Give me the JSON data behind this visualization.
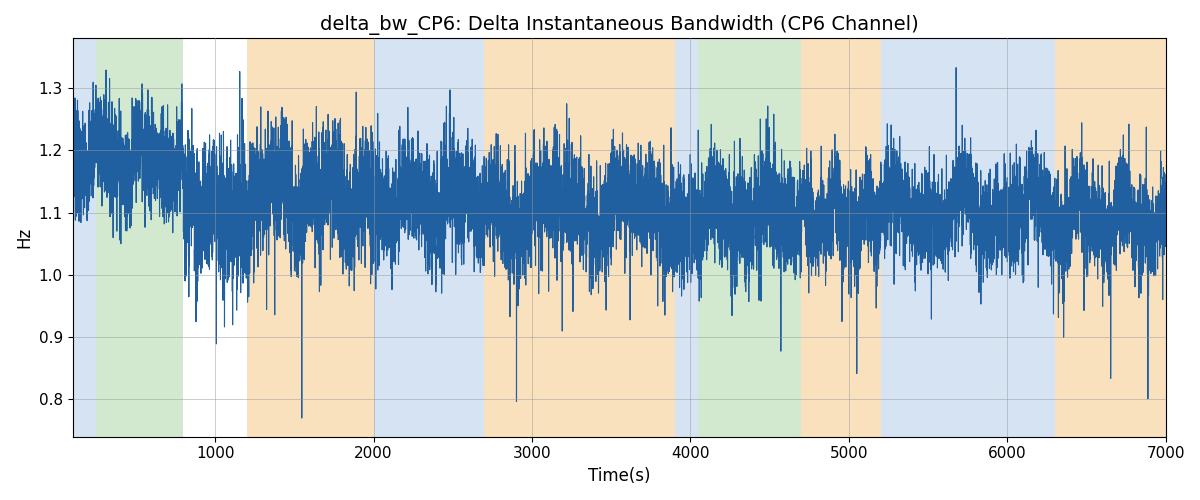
{
  "title": "delta_bw_CP6: Delta Instantaneous Bandwidth (CP6 Channel)",
  "xlabel": "Time(s)",
  "ylabel": "Hz",
  "xlim": [
    100,
    7000
  ],
  "ylim": [
    0.74,
    1.38
  ],
  "line_color": "#2060a0",
  "line_width": 0.8,
  "seed": 7,
  "background_regions": [
    {
      "xmin": 100,
      "xmax": 250,
      "color": "#adc8e8",
      "alpha": 0.5
    },
    {
      "xmin": 250,
      "xmax": 800,
      "color": "#a8d4a0",
      "alpha": 0.5
    },
    {
      "xmin": 800,
      "xmax": 1200,
      "color": "#ffffff",
      "alpha": 0.0
    },
    {
      "xmin": 1200,
      "xmax": 2000,
      "color": "#f5c98a",
      "alpha": 0.55
    },
    {
      "xmin": 2000,
      "xmax": 2700,
      "color": "#adc8e8",
      "alpha": 0.5
    },
    {
      "xmin": 2700,
      "xmax": 3900,
      "color": "#f5c98a",
      "alpha": 0.55
    },
    {
      "xmin": 3900,
      "xmax": 4050,
      "color": "#adc8e8",
      "alpha": 0.5
    },
    {
      "xmin": 4050,
      "xmax": 4700,
      "color": "#a8d4a0",
      "alpha": 0.5
    },
    {
      "xmin": 4700,
      "xmax": 5200,
      "color": "#f5c98a",
      "alpha": 0.55
    },
    {
      "xmin": 5200,
      "xmax": 6300,
      "color": "#adc8e8",
      "alpha": 0.5
    },
    {
      "xmin": 6300,
      "xmax": 7050,
      "color": "#f5c98a",
      "alpha": 0.55
    }
  ],
  "grid_color": "#999999",
  "grid_alpha": 0.5,
  "grid_linewidth": 0.7,
  "title_fontsize": 14,
  "label_fontsize": 12,
  "tick_fontsize": 11,
  "segments": [
    {
      "xstart": 100,
      "xend": 800,
      "base": 1.2,
      "std": 0.045,
      "trend": -0.02,
      "spike_down": 0.0,
      "spike_up": 0.0
    },
    {
      "xstart": 800,
      "xend": 1200,
      "base": 1.12,
      "std": 0.055,
      "trend": -0.03,
      "spike_down": 0.12,
      "spike_up": 0.0
    },
    {
      "xstart": 1200,
      "xend": 2000,
      "base": 1.13,
      "std": 0.05,
      "trend": 0.0,
      "spike_down": 0.1,
      "spike_up": 0.05
    },
    {
      "xstart": 2000,
      "xend": 2700,
      "base": 1.12,
      "std": 0.045,
      "trend": 0.0,
      "spike_down": 0.08,
      "spike_up": 0.04
    },
    {
      "xstart": 2700,
      "xend": 3900,
      "base": 1.11,
      "std": 0.045,
      "trend": 0.0,
      "spike_down": 0.1,
      "spike_up": 0.05
    },
    {
      "xstart": 3900,
      "xend": 4700,
      "base": 1.1,
      "std": 0.045,
      "trend": 0.0,
      "spike_down": 0.12,
      "spike_up": 0.04
    },
    {
      "xstart": 4700,
      "xend": 5200,
      "base": 1.09,
      "std": 0.04,
      "trend": 0.0,
      "spike_down": 0.08,
      "spike_up": 0.03
    },
    {
      "xstart": 5200,
      "xend": 6300,
      "base": 1.1,
      "std": 0.04,
      "trend": 0.0,
      "spike_down": 0.08,
      "spike_up": 0.04
    },
    {
      "xstart": 6300,
      "xend": 7000,
      "base": 1.09,
      "std": 0.04,
      "trend": 0.0,
      "spike_down": 0.1,
      "spike_up": 0.03
    }
  ]
}
